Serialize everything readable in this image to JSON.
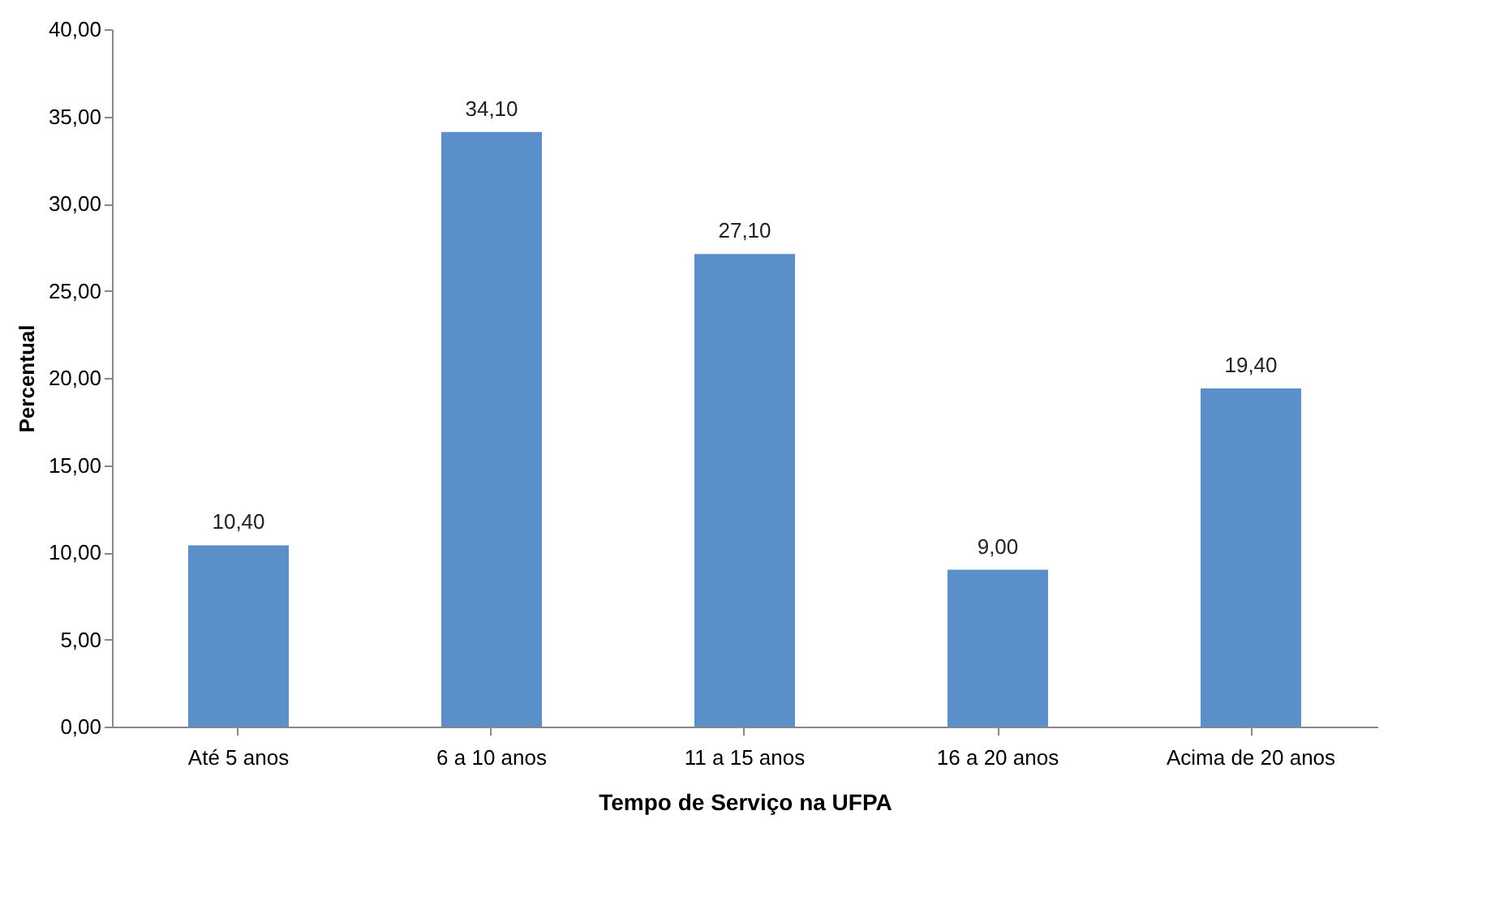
{
  "chart_data": {
    "type": "bar",
    "xlabel": "Tempo de Serviço na UFPA",
    "ylabel": "Percentual",
    "categories": [
      "Até 5 anos",
      "6 a 10 anos",
      "11 a 15 anos",
      "16 a 20 anos",
      "Acima de 20 anos"
    ],
    "values": [
      10.4,
      34.1,
      27.1,
      9.0,
      19.4
    ],
    "value_labels": [
      "10,40",
      "34,10",
      "27,10",
      "9,00",
      "19,40"
    ],
    "color": "#5b8fc9",
    "ylim": [
      0,
      40
    ],
    "yticks": [
      {
        "value": 0,
        "label": "0,00"
      },
      {
        "value": 5,
        "label": "5,00"
      },
      {
        "value": 10,
        "label": "10,00"
      },
      {
        "value": 15,
        "label": "15,00"
      },
      {
        "value": 20,
        "label": "20,00"
      },
      {
        "value": 25,
        "label": "25,00"
      },
      {
        "value": 30,
        "label": "30,00"
      },
      {
        "value": 35,
        "label": "35,00"
      },
      {
        "value": 40,
        "label": "40,00"
      }
    ],
    "grid": false
  }
}
